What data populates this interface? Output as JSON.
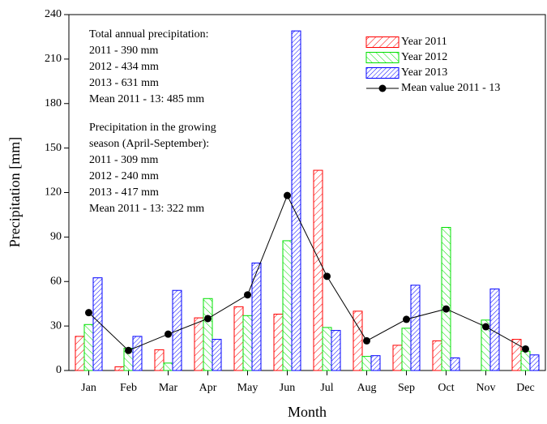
{
  "chart_data": {
    "type": "bar",
    "xlabel": "Month",
    "ylabel": "Precipitation [mm]",
    "categories": [
      "Jan",
      "Feb",
      "Mar",
      "Apr",
      "May",
      "Jun",
      "Jul",
      "Aug",
      "Sep",
      "Oct",
      "Nov",
      "Dec"
    ],
    "series": [
      {
        "name": "Year 2011",
        "color": "#ff0000",
        "values": [
          23,
          2.5,
          14,
          35.5,
          43,
          38,
          135,
          40,
          17,
          20,
          0,
          21
        ]
      },
      {
        "name": "Year 2012",
        "color": "#00e000",
        "values": [
          31,
          15,
          5,
          48.5,
          37,
          87.5,
          29,
          9.5,
          28.5,
          96.5,
          34,
          13
        ]
      },
      {
        "name": "Year 2013",
        "color": "#0000ff",
        "values": [
          62.5,
          23,
          54,
          21,
          72.5,
          229,
          27,
          10,
          57.5,
          8.5,
          55,
          10.5
        ]
      },
      {
        "name": "Mean value 2011 - 13",
        "color": "#000000",
        "type": "line",
        "values": [
          39,
          13.5,
          24.5,
          35,
          51,
          118,
          63.5,
          20,
          34.5,
          41.5,
          29.5,
          14.5
        ]
      }
    ],
    "ylim": [
      0,
      240
    ],
    "yticks": [
      0,
      30,
      60,
      90,
      120,
      150,
      180,
      210,
      240
    ],
    "annotations": [
      [
        "Total annual precipitation:",
        "2011 - 390 mm",
        "2012 - 434 mm",
        "2013 - 631 mm",
        "Mean 2011 - 13: 485 mm"
      ],
      [
        "Precipitation in the growing",
        "season (April-September):",
        "2011 - 309 mm",
        "2012 - 240 mm",
        "2013 - 417 mm",
        "Mean 2011 - 13: 322 mm"
      ]
    ]
  }
}
